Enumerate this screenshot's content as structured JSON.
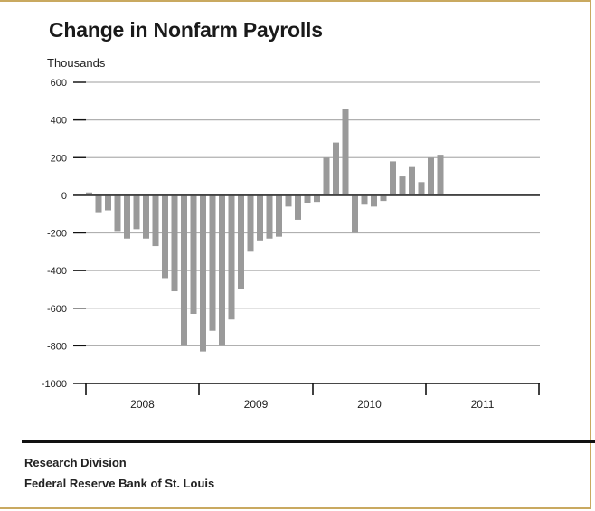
{
  "chart_data": {
    "type": "bar",
    "title": "Change in Nonfarm Payrolls",
    "ylabel": "Thousands",
    "xlabel": "",
    "ylim": [
      -1000,
      600
    ],
    "yticks": [
      600,
      400,
      200,
      0,
      -200,
      -400,
      -600,
      -800,
      -1000
    ],
    "year_labels": [
      "2008",
      "2009",
      "2010",
      "2011"
    ],
    "grid": true,
    "values": [
      15,
      -90,
      -80,
      -190,
      -230,
      -180,
      -230,
      -270,
      -440,
      -510,
      -800,
      -630,
      -830,
      -720,
      -800,
      -660,
      -500,
      -300,
      -240,
      -230,
      -220,
      -60,
      -130,
      -40,
      -35,
      200,
      280,
      460,
      -200,
      -50,
      -60,
      -30,
      180,
      100,
      150,
      70,
      200,
      215
    ]
  },
  "footer": {
    "line1": "Research Division",
    "line2": "Federal Reserve Bank of St. Louis"
  },
  "colors": {
    "bar": "#9a9a9a",
    "gridline": "#b0b0b0",
    "zero_line": "#444444",
    "axis": "#111111"
  }
}
